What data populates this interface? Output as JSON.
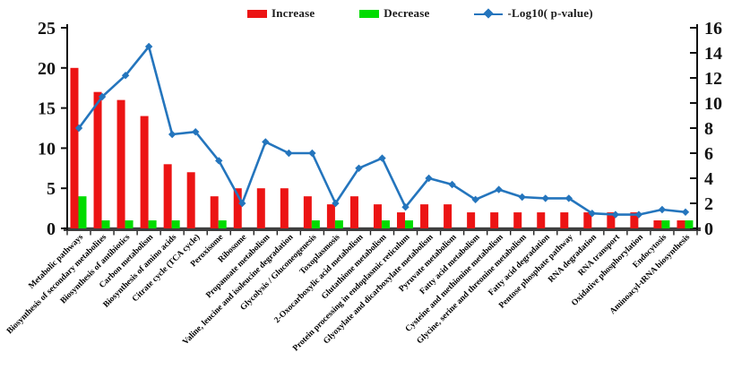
{
  "legend": {
    "increase": "Increase",
    "decrease": "Decrease",
    "logp": "-Log10( p-value)"
  },
  "colors": {
    "increase_bar": "#EC1414",
    "decrease_bar": "#00DC00",
    "logp_line": "#2475BD",
    "axis_line": "#3F3F3F",
    "tick_text": "#111111"
  },
  "axes": {
    "left_tick_labels": [
      "0",
      "5",
      "10",
      "15",
      "20",
      "25"
    ],
    "right_tick_labels": [
      "0",
      "2",
      "4",
      "6",
      "8",
      "10",
      "12",
      "14",
      "16"
    ]
  },
  "chart_data": {
    "type": "bar",
    "title": "",
    "xlabel": "",
    "ylabel_left": "",
    "ylabel_right": "",
    "grid": false,
    "legend_position": "top",
    "ylim_left": [
      0,
      25
    ],
    "ylim_right": [
      0,
      16
    ],
    "categories": [
      "Metabolic pathways",
      "Biosynthesis of secondary metabolites",
      "Biosynthesis of antibiotics",
      "Carbon metabolism",
      "Biosynthesis of amino acids",
      "Citrate cycle (TCA cycle)",
      "Peroxisome",
      "Ribosome",
      "Propanoate metabolism",
      "Valine, leucine and isoleucine degradation",
      "Glycolysis / Gluconeogenesis",
      "Toxoplasmosis",
      "2-Oxocarboxylic acid metabolism",
      "Glutathione metabolism",
      "Protein processing in endoplasmic reticulum",
      "Glyoxylate and dicarboxylate metabolism",
      "Pyruvate metabolism",
      "Fatty acid metabolism",
      "Cysteine and methionine metabolism",
      "Glycine, serine and threonine metabolism",
      "Fatty acid degradation",
      "Pentose phosphate pathway",
      "RNA degradation",
      "RNA transport",
      "Oxidative phosphorylation",
      "Endocytosis",
      "Aminoacyl-tRNA biosynthesis"
    ],
    "series": [
      {
        "name": "Increase",
        "type": "bar",
        "axis": "left",
        "color": "#EC1414",
        "values": [
          20,
          17,
          16,
          14,
          8,
          7,
          4,
          5,
          5,
          5,
          4,
          3,
          4,
          3,
          2,
          3,
          3,
          2,
          2,
          2,
          2,
          2,
          2,
          2,
          2,
          1,
          1
        ]
      },
      {
        "name": "Decrease",
        "type": "bar",
        "axis": "left",
        "color": "#00DC00",
        "values": [
          4,
          1,
          1,
          1,
          1,
          0,
          1,
          0,
          0,
          0,
          1,
          1,
          0,
          1,
          1,
          0,
          0,
          0,
          0,
          0,
          0,
          0,
          0,
          0,
          0,
          1,
          1
        ]
      },
      {
        "name": "-Log10( p-value)",
        "type": "line",
        "axis": "right",
        "color": "#2475BD",
        "values": [
          8.0,
          10.5,
          12.2,
          14.5,
          7.5,
          7.7,
          5.4,
          2.0,
          6.9,
          6.0,
          6.0,
          2.0,
          4.8,
          5.6,
          1.7,
          4.0,
          3.5,
          2.3,
          3.1,
          2.5,
          2.4,
          2.4,
          1.2,
          1.1,
          1.1,
          1.5,
          1.3
        ]
      }
    ]
  }
}
